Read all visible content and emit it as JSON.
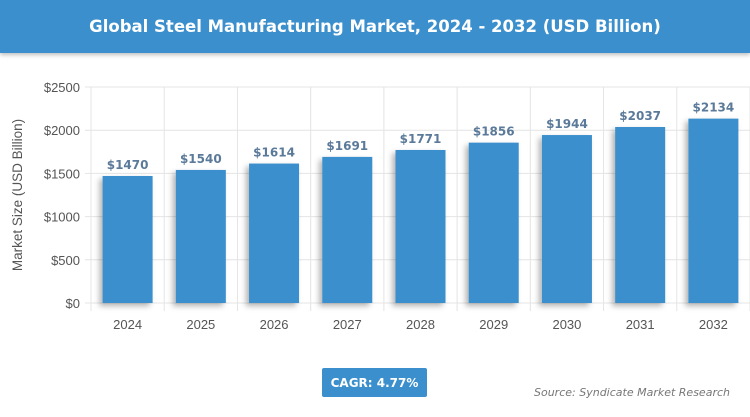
{
  "chart_data": {
    "type": "bar",
    "title": "Global Steel Manufacturing Market, 2024 - 2032 (USD Billion)",
    "ylabel": "Market Size (USD Billion)",
    "xlabel": "",
    "categories": [
      "2024",
      "2025",
      "2026",
      "2027",
      "2028",
      "2029",
      "2030",
      "2031",
      "2032"
    ],
    "values": [
      1470,
      1540,
      1614,
      1691,
      1771,
      1856,
      1944,
      2037,
      2134
    ],
    "data_labels": [
      "$1470",
      "$1540",
      "$1614",
      "$1691",
      "$1771",
      "$1856",
      "$1944",
      "$2037",
      "$2134"
    ],
    "ylim": [
      0,
      2500
    ],
    "yticks": [
      0,
      500,
      1000,
      1500,
      2000,
      2500
    ],
    "ytick_labels": [
      "$0",
      "$500",
      "$1000",
      "$1500",
      "$2000",
      "$2500"
    ],
    "grid": true,
    "bar_color": "#3b8fcc",
    "label_color": "#5b7a9a"
  },
  "footer": {
    "cagr": "CAGR: 4.77%",
    "source": "Source: Syndicate Market Research"
  }
}
